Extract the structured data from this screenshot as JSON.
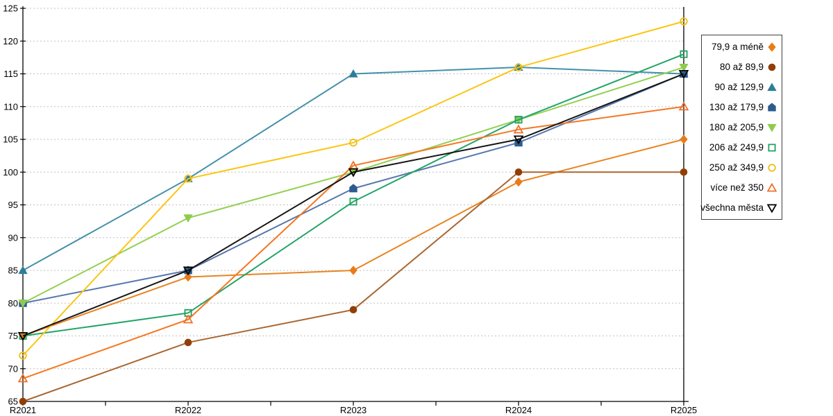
{
  "chart_data": {
    "type": "line",
    "title": "",
    "xlabel": "",
    "ylabel": "",
    "categories": [
      "R2021",
      "R2022",
      "R2023",
      "R2024",
      "R2025"
    ],
    "y_tick_labels": [
      "65",
      "70",
      "75",
      "80",
      "85",
      "90",
      "95",
      "100",
      "105",
      "110",
      "115",
      "120",
      "125"
    ],
    "ylim": [
      65,
      125
    ],
    "ytick_step": 5,
    "grid": "horizontal-dashed",
    "gridline_color": "#BFBFBF",
    "axis_color": "#000000",
    "legend_position": "right",
    "series": [
      {
        "name": "79,9 a méně",
        "marker": "diamond",
        "filled": true,
        "marker_color": "#E87C18",
        "line_color": "#E8831F",
        "values": [
          75,
          84,
          85,
          98.5,
          105
        ]
      },
      {
        "name": "80 až 89,9",
        "marker": "circle",
        "filled": true,
        "marker_color": "#913E08",
        "line_color": "#A9662F",
        "values": [
          65,
          74,
          79,
          100,
          100
        ]
      },
      {
        "name": "90 až 129,9",
        "marker": "triangle-up",
        "filled": true,
        "marker_color": "#2E7D98",
        "line_color": "#4490A9",
        "values": [
          85,
          99,
          115,
          116,
          115
        ]
      },
      {
        "name": "130 až 179,9",
        "marker": "pentagon",
        "filled": true,
        "marker_color": "#2D5B8E",
        "line_color": "#5677AE",
        "values": [
          80,
          85,
          97.5,
          104.5,
          115
        ]
      },
      {
        "name": "180 až 205,9",
        "marker": "triangle-down",
        "filled": true,
        "marker_color": "#8FCB4C",
        "line_color": "#92D050",
        "values": [
          80,
          93,
          100,
          108,
          116
        ]
      },
      {
        "name": "206 až 249,9",
        "marker": "square",
        "filled": false,
        "marker_color": "#1FA160",
        "line_color": "#22A467",
        "values": [
          75,
          78.5,
          95.5,
          108,
          118
        ]
      },
      {
        "name": "250 až 349,9",
        "marker": "circle",
        "filled": false,
        "marker_color": "#EFBE10",
        "line_color": "#FBC513",
        "values": [
          72,
          99,
          104.5,
          116,
          123
        ]
      },
      {
        "name": "více než 350",
        "marker": "triangle-up",
        "filled": false,
        "marker_color": "#F0702A",
        "line_color": "#F5761F",
        "values": [
          68.5,
          77.5,
          101,
          106.5,
          110
        ]
      },
      {
        "name": "všechna města",
        "marker": "triangle-down",
        "filled": false,
        "marker_color": "#000000",
        "line_color": "#141414",
        "values": [
          75,
          85,
          100,
          105,
          115
        ]
      }
    ]
  }
}
